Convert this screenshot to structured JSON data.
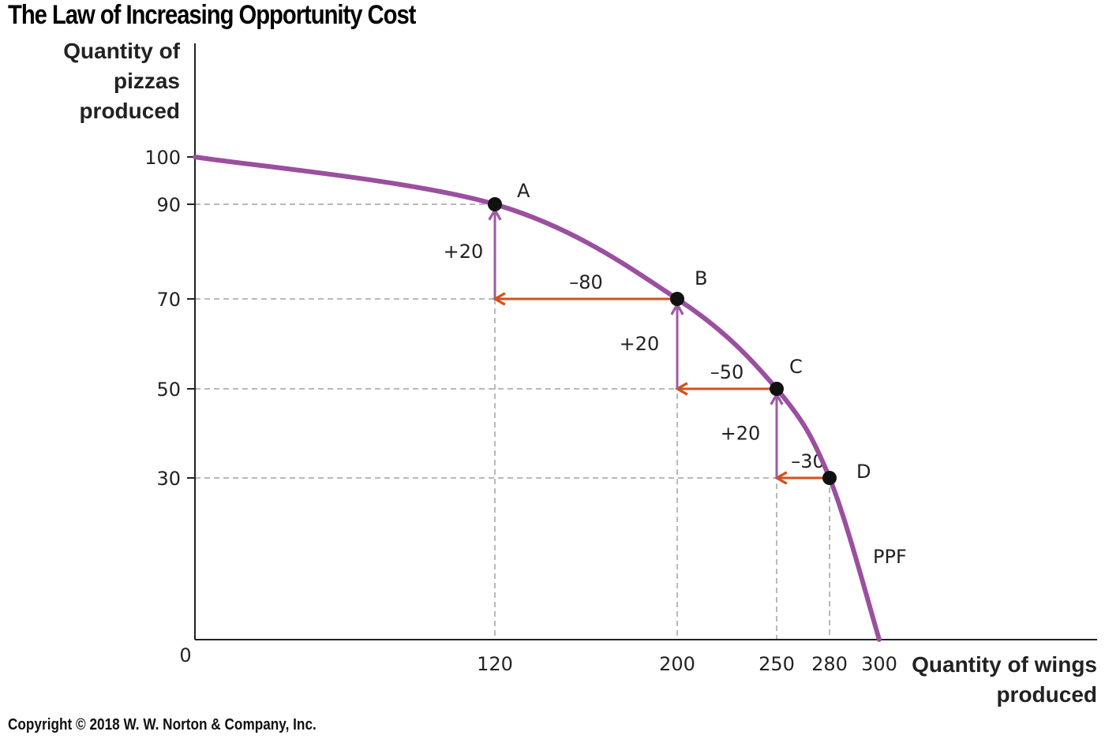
{
  "title": "The Law of Increasing Opportunity Cost",
  "copyright": "Copyright © 2018 W. W. Norton & Company, Inc.",
  "colors": {
    "curve": "#9b4f9f",
    "arrow_horizontal": "#d2501c",
    "arrow_vertical": "#a05aa6",
    "guide": "#b9b9b9",
    "axis": "#222222",
    "point": "#111111"
  },
  "chart_data": {
    "type": "line",
    "ylabel": "Quantity of pizzas produced",
    "xlabel": "Quantity of wings produced",
    "origin_label": "0",
    "xlim": [
      0,
      300
    ],
    "ylim": [
      0,
      100
    ],
    "x_ticks": [
      "120",
      "200",
      "250",
      "280",
      "300"
    ],
    "y_ticks": [
      "100",
      "90",
      "70",
      "50",
      "30"
    ],
    "series": [
      {
        "name": "PPF",
        "curve_points": [
          [
            0,
            100
          ],
          [
            120,
            90
          ],
          [
            200,
            70
          ],
          [
            250,
            50
          ],
          [
            280,
            30
          ],
          [
            300,
            0
          ]
        ]
      }
    ],
    "points": [
      {
        "label": "A",
        "x": 120,
        "y": 90
      },
      {
        "label": "B",
        "x": 200,
        "y": 70
      },
      {
        "label": "C",
        "x": 250,
        "y": 50
      },
      {
        "label": "D",
        "x": 280,
        "y": 30
      }
    ],
    "changes": [
      {
        "axis": "x",
        "from": [
          200,
          70
        ],
        "to": [
          120,
          70
        ],
        "label": "–80"
      },
      {
        "axis": "y",
        "from": [
          120,
          70
        ],
        "to": [
          120,
          90
        ],
        "label": "+20"
      },
      {
        "axis": "x",
        "from": [
          250,
          50
        ],
        "to": [
          200,
          50
        ],
        "label": "–50"
      },
      {
        "axis": "y",
        "from": [
          200,
          50
        ],
        "to": [
          200,
          70
        ],
        "label": "+20"
      },
      {
        "axis": "x",
        "from": [
          280,
          30
        ],
        "to": [
          250,
          30
        ],
        "label": "–30"
      },
      {
        "axis": "y",
        "from": [
          250,
          30
        ],
        "to": [
          250,
          50
        ],
        "label": "+20"
      }
    ],
    "grid": false,
    "legend": "none"
  }
}
